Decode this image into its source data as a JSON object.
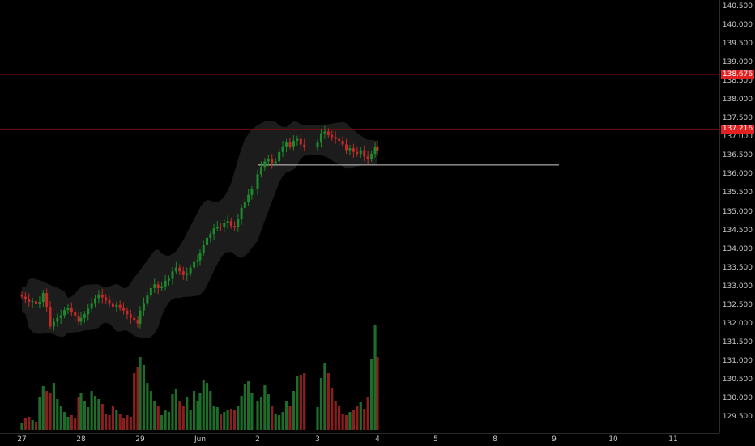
{
  "chart_data": {
    "type": "candlestick",
    "price_axis": {
      "range": [
        129.2,
        140.6
      ],
      "ticks": [
        "140.500",
        "140.000",
        "139.500",
        "139.000",
        "138.500",
        "138.000",
        "137.500",
        "137.000",
        "136.500",
        "136.000",
        "135.500",
        "135.000",
        "134.500",
        "134.000",
        "133.500",
        "133.000",
        "132.500",
        "132.000",
        "131.500",
        "131.000",
        "130.500",
        "130.000",
        "129.500"
      ]
    },
    "time_axis": {
      "ticks": [
        "27",
        "28",
        "29",
        "Jun",
        "2",
        "3",
        "4",
        "5",
        "8",
        "9",
        "10",
        "11"
      ]
    },
    "price_tags": [
      {
        "value": 138.676,
        "label": "138.676"
      },
      {
        "value": 137.216,
        "label": "137.216"
      }
    ],
    "horizontal_line": 136.25,
    "path": [
      [
        0,
        132.72
      ],
      [
        0.06,
        132.66
      ],
      [
        0.12,
        132.58
      ],
      [
        0.18,
        132.6
      ],
      [
        0.24,
        132.52
      ],
      [
        0.3,
        132.58
      ],
      [
        0.36,
        132.82
      ],
      [
        0.42,
        132.45
      ],
      [
        0.48,
        131.92
      ],
      [
        0.54,
        132.05
      ],
      [
        0.6,
        132.15
      ],
      [
        0.66,
        132.22
      ],
      [
        0.72,
        132.36
      ],
      [
        0.78,
        132.42
      ],
      [
        0.84,
        132.32
      ],
      [
        0.9,
        132.2
      ],
      [
        0.96,
        132.05
      ],
      [
        1.0,
        132.15
      ],
      [
        1.06,
        132.25
      ],
      [
        1.12,
        132.4
      ],
      [
        1.18,
        132.55
      ],
      [
        1.24,
        132.68
      ],
      [
        1.3,
        132.78
      ],
      [
        1.36,
        132.7
      ],
      [
        1.42,
        132.62
      ],
      [
        1.48,
        132.55
      ],
      [
        1.54,
        132.45
      ],
      [
        1.6,
        132.5
      ],
      [
        1.66,
        132.42
      ],
      [
        1.72,
        132.35
      ],
      [
        1.78,
        132.25
      ],
      [
        1.84,
        132.15
      ],
      [
        1.9,
        132.1
      ],
      [
        1.96,
        132.0
      ],
      [
        2.0,
        132.35
      ],
      [
        2.06,
        132.55
      ],
      [
        2.12,
        132.75
      ],
      [
        2.18,
        132.95
      ],
      [
        2.24,
        133.05
      ],
      [
        2.3,
        132.95
      ],
      [
        2.36,
        133.0
      ],
      [
        2.42,
        133.15
      ],
      [
        2.48,
        133.2
      ],
      [
        2.54,
        133.4
      ],
      [
        2.6,
        133.5
      ],
      [
        2.66,
        133.4
      ],
      [
        2.72,
        133.3
      ],
      [
        2.78,
        133.35
      ],
      [
        2.84,
        133.5
      ],
      [
        2.9,
        133.65
      ],
      [
        2.96,
        133.7
      ],
      [
        3.0,
        133.9
      ],
      [
        3.06,
        134.1
      ],
      [
        3.12,
        134.3
      ],
      [
        3.18,
        134.4
      ],
      [
        3.24,
        134.55
      ],
      [
        3.3,
        134.6
      ],
      [
        3.36,
        134.58
      ],
      [
        3.42,
        134.7
      ],
      [
        3.48,
        134.75
      ],
      [
        3.54,
        134.62
      ],
      [
        3.6,
        134.58
      ],
      [
        3.66,
        134.8
      ],
      [
        3.72,
        135.1
      ],
      [
        3.78,
        135.25
      ],
      [
        3.84,
        135.45
      ],
      [
        3.9,
        135.6
      ],
      [
        4.0,
        136.0
      ],
      [
        4.06,
        136.2
      ],
      [
        4.12,
        136.35
      ],
      [
        4.18,
        136.4
      ],
      [
        4.24,
        136.3
      ],
      [
        4.3,
        136.35
      ],
      [
        4.36,
        136.6
      ],
      [
        4.42,
        136.75
      ],
      [
        4.48,
        136.85
      ],
      [
        4.54,
        136.75
      ],
      [
        4.6,
        136.9
      ],
      [
        4.66,
        136.95
      ],
      [
        4.72,
        136.8
      ],
      [
        4.78,
        136.72
      ],
      [
        5.0,
        136.85
      ],
      [
        5.06,
        137.1
      ],
      [
        5.12,
        137.15
      ],
      [
        5.18,
        137.05
      ],
      [
        5.24,
        137.0
      ],
      [
        5.3,
        136.95
      ],
      [
        5.36,
        136.9
      ],
      [
        5.42,
        136.8
      ],
      [
        5.48,
        136.65
      ],
      [
        5.54,
        136.7
      ],
      [
        5.6,
        136.6
      ],
      [
        5.66,
        136.55
      ],
      [
        5.72,
        136.65
      ],
      [
        5.78,
        136.48
      ],
      [
        5.84,
        136.42
      ],
      [
        5.9,
        136.55
      ],
      [
        5.96,
        136.75
      ],
      [
        6.0,
        136.62
      ]
    ],
    "volume_bars": [
      [
        0,
        8
      ],
      [
        0.06,
        14
      ],
      [
        0.12,
        16
      ],
      [
        0.18,
        12
      ],
      [
        0.24,
        10
      ],
      [
        0.3,
        40
      ],
      [
        0.36,
        54
      ],
      [
        0.42,
        48
      ],
      [
        0.48,
        45
      ],
      [
        0.54,
        58
      ],
      [
        0.6,
        38
      ],
      [
        0.66,
        30
      ],
      [
        0.72,
        22
      ],
      [
        0.78,
        16
      ],
      [
        0.84,
        18
      ],
      [
        0.9,
        14
      ],
      [
        0.96,
        40
      ],
      [
        1.0,
        45
      ],
      [
        1.06,
        35
      ],
      [
        1.12,
        28
      ],
      [
        1.18,
        48
      ],
      [
        1.24,
        42
      ],
      [
        1.3,
        38
      ],
      [
        1.36,
        32
      ],
      [
        1.42,
        20
      ],
      [
        1.48,
        18
      ],
      [
        1.54,
        30
      ],
      [
        1.6,
        24
      ],
      [
        1.66,
        20
      ],
      [
        1.72,
        14
      ],
      [
        1.78,
        18
      ],
      [
        1.84,
        16
      ],
      [
        1.9,
        70
      ],
      [
        1.96,
        78
      ],
      [
        2.0,
        90
      ],
      [
        2.06,
        80
      ],
      [
        2.12,
        58
      ],
      [
        2.18,
        48
      ],
      [
        2.24,
        36
      ],
      [
        2.3,
        30
      ],
      [
        2.36,
        18
      ],
      [
        2.42,
        25
      ],
      [
        2.48,
        22
      ],
      [
        2.54,
        44
      ],
      [
        2.6,
        50
      ],
      [
        2.66,
        36
      ],
      [
        2.72,
        30
      ],
      [
        2.78,
        40
      ],
      [
        2.84,
        24
      ],
      [
        2.9,
        48
      ],
      [
        2.96,
        36
      ],
      [
        3.0,
        45
      ],
      [
        3.06,
        62
      ],
      [
        3.12,
        58
      ],
      [
        3.18,
        48
      ],
      [
        3.24,
        30
      ],
      [
        3.3,
        28
      ],
      [
        3.36,
        20
      ],
      [
        3.42,
        22
      ],
      [
        3.48,
        24
      ],
      [
        3.54,
        26
      ],
      [
        3.6,
        24
      ],
      [
        3.66,
        30
      ],
      [
        3.72,
        42
      ],
      [
        3.78,
        56
      ],
      [
        3.84,
        60
      ],
      [
        3.9,
        46
      ],
      [
        4.0,
        36
      ],
      [
        4.06,
        40
      ],
      [
        4.12,
        55
      ],
      [
        4.18,
        44
      ],
      [
        4.24,
        30
      ],
      [
        4.3,
        20
      ],
      [
        4.36,
        18
      ],
      [
        4.42,
        22
      ],
      [
        4.48,
        36
      ],
      [
        4.54,
        30
      ],
      [
        4.6,
        48
      ],
      [
        4.66,
        66
      ],
      [
        4.72,
        68
      ],
      [
        4.78,
        70
      ],
      [
        5.0,
        28
      ],
      [
        5.06,
        64
      ],
      [
        5.12,
        82
      ],
      [
        5.18,
        70
      ],
      [
        5.24,
        52
      ],
      [
        5.3,
        36
      ],
      [
        5.36,
        30
      ],
      [
        5.42,
        20
      ],
      [
        5.48,
        18
      ],
      [
        5.54,
        22
      ],
      [
        5.6,
        24
      ],
      [
        5.66,
        30
      ],
      [
        5.72,
        34
      ],
      [
        5.78,
        26
      ],
      [
        5.84,
        40
      ],
      [
        5.9,
        88
      ],
      [
        5.96,
        130
      ],
      [
        6.0,
        90
      ]
    ],
    "colors": {
      "up": "#1b8a2a",
      "down": "#c62828",
      "vol_up": "#1f6b2a",
      "vol_down": "#8a1f1f",
      "band": "#1c1c1c",
      "grid": "#0d0d0d",
      "alert_line": "#6b0f0f",
      "hline": "#d0d0d0",
      "tag": "#e32020"
    }
  }
}
